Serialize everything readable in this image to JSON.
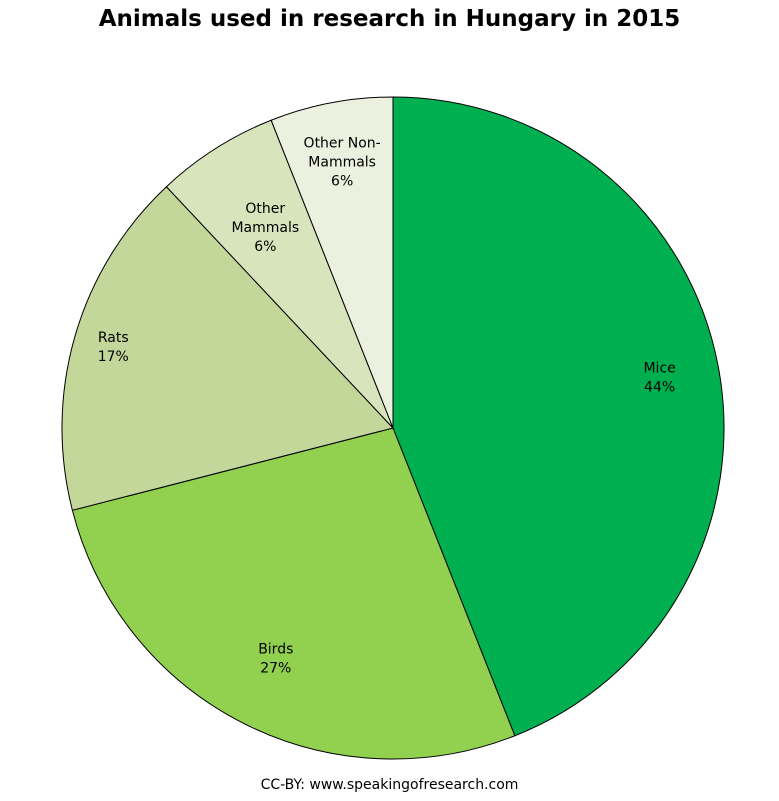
{
  "chart_data": {
    "type": "pie",
    "title": "Animals used in research in Hungary in 2015",
    "slices": [
      {
        "label": "Mice",
        "value": 44,
        "display": "44%",
        "color": "#00b050"
      },
      {
        "label": "Birds",
        "value": 27,
        "display": "27%",
        "color": "#92d050"
      },
      {
        "label": "Rats",
        "value": 17,
        "display": "17%",
        "color": "#c4d79b"
      },
      {
        "label": "Other Mammals",
        "value": 6,
        "display": "6%",
        "color": "#d8e4bc"
      },
      {
        "label": "Other Non-Mammals",
        "value": 6,
        "display": "6%",
        "color": "#ebf1de"
      }
    ],
    "start": "12 o'clock",
    "direction": "clockwise",
    "legend": "none",
    "footer": "CC-BY: www.speakingofresearch.com"
  }
}
